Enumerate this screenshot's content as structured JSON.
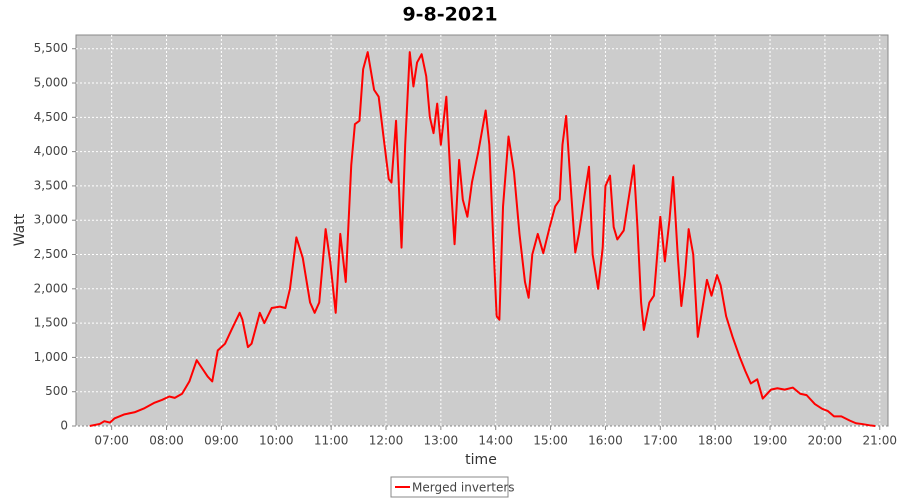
{
  "chart_data": {
    "type": "line",
    "title": "9-8-2021",
    "x_label": "time",
    "y_label": "Watt",
    "x": [
      "06:36",
      "06:47",
      "06:52",
      "06:58",
      "07:03",
      "07:14",
      "07:25",
      "07:36",
      "07:47",
      "07:55",
      "08:03",
      "08:09",
      "08:17",
      "08:25",
      "08:33",
      "08:40",
      "08:45",
      "08:50",
      "08:56",
      "09:04",
      "09:11",
      "09:20",
      "09:23",
      "09:29",
      "09:33",
      "09:42",
      "09:47",
      "09:55",
      "10:04",
      "10:10",
      "10:15",
      "10:22",
      "10:29",
      "10:37",
      "10:42",
      "10:47",
      "10:54",
      "10:59",
      "11:05",
      "11:10",
      "11:16",
      "11:22",
      "11:26",
      "11:31",
      "11:35",
      "11:40",
      "11:47",
      "11:52",
      "11:57",
      "12:03",
      "12:06",
      "12:11",
      "12:17",
      "12:21",
      "12:26",
      "12:30",
      "12:34",
      "12:39",
      "12:44",
      "12:48",
      "12:52",
      "12:56",
      "13:00",
      "13:06",
      "13:11",
      "13:15",
      "13:20",
      "13:24",
      "13:29",
      "13:34",
      "13:41",
      "13:49",
      "13:53",
      "13:57",
      "14:01",
      "14:04",
      "14:08",
      "14:14",
      "14:20",
      "14:26",
      "14:32",
      "14:36",
      "14:40",
      "14:46",
      "14:52",
      "14:59",
      "15:05",
      "15:10",
      "15:13",
      "15:17",
      "15:22",
      "15:27",
      "15:31",
      "15:37",
      "15:42",
      "15:46",
      "15:52",
      "15:57",
      "16:00",
      "16:05",
      "16:09",
      "16:13",
      "16:20",
      "16:24",
      "16:31",
      "16:35",
      "16:39",
      "16:42",
      "16:48",
      "16:53",
      "17:00",
      "17:05",
      "17:10",
      "17:14",
      "17:19",
      "17:23",
      "17:27",
      "17:31",
      "17:36",
      "17:41",
      "17:47",
      "17:51",
      "17:56",
      "18:02",
      "18:06",
      "18:12",
      "18:19",
      "18:27",
      "18:33",
      "18:39",
      "18:46",
      "18:52",
      "19:01",
      "19:08",
      "19:16",
      "19:25",
      "19:33",
      "19:40",
      "19:49",
      "19:57",
      "20:03",
      "20:10",
      "20:18",
      "20:27",
      "20:34",
      "20:40",
      "20:49",
      "20:55"
    ],
    "series": [
      {
        "name": "Merged inverters",
        "color": "#ff0000",
        "values": [
          0,
          30,
          70,
          50,
          110,
          170,
          200,
          260,
          340,
          380,
          430,
          410,
          470,
          650,
          960,
          820,
          720,
          650,
          1100,
          1200,
          1400,
          1650,
          1550,
          1150,
          1200,
          1650,
          1500,
          1720,
          1740,
          1720,
          2000,
          2750,
          2450,
          1800,
          1650,
          1800,
          2870,
          2400,
          1650,
          2800,
          2100,
          3800,
          4400,
          4450,
          5200,
          5450,
          4900,
          4800,
          4250,
          3600,
          3550,
          4450,
          2600,
          4100,
          5450,
          4950,
          5300,
          5420,
          5100,
          4500,
          4270,
          4700,
          4100,
          4800,
          3500,
          2650,
          3880,
          3300,
          3050,
          3550,
          4000,
          4600,
          4100,
          2800,
          1600,
          1550,
          3200,
          4220,
          3700,
          2800,
          2100,
          1870,
          2500,
          2800,
          2520,
          2900,
          3200,
          3300,
          4100,
          4520,
          3500,
          2530,
          2800,
          3350,
          3780,
          2500,
          2000,
          2600,
          3500,
          3650,
          2900,
          2720,
          2850,
          3200,
          3800,
          2900,
          1800,
          1400,
          1800,
          1900,
          3050,
          2400,
          3000,
          3630,
          2500,
          1750,
          2200,
          2870,
          2500,
          1300,
          1800,
          2130,
          1900,
          2200,
          2050,
          1600,
          1300,
          1000,
          800,
          620,
          680,
          400,
          530,
          550,
          530,
          560,
          470,
          450,
          320,
          250,
          220,
          140,
          140,
          80,
          40,
          30,
          10,
          0
        ]
      }
    ],
    "xlim": [
      "06:21",
      "21:09"
    ],
    "xticks": [
      "07:00",
      "08:00",
      "09:00",
      "10:00",
      "11:00",
      "12:00",
      "13:00",
      "14:00",
      "15:00",
      "16:00",
      "17:00",
      "18:00",
      "19:00",
      "20:00",
      "21:00"
    ],
    "ylim": [
      0,
      5700
    ],
    "yticks": [
      0,
      500,
      {
        "value": 1000,
        "label": "1,000"
      },
      {
        "value": 1500,
        "label": "1,500"
      },
      {
        "value": 2000,
        "label": "2,000"
      },
      {
        "value": 2500,
        "label": "2,500"
      },
      {
        "value": 3000,
        "label": "3,000"
      },
      {
        "value": 3500,
        "label": "3,500"
      },
      {
        "value": 4000,
        "label": "4,000"
      },
      {
        "value": 4500,
        "label": "4,500"
      },
      {
        "value": 5000,
        "label": "5,000"
      },
      {
        "value": 5500,
        "label": "5,500"
      }
    ],
    "grid": true,
    "legend": "bottom"
  }
}
